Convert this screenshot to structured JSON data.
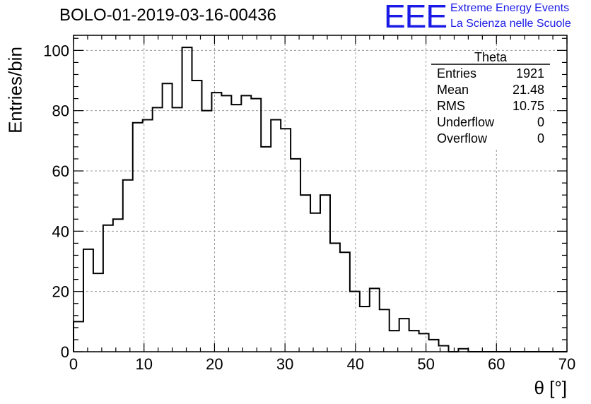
{
  "header": {
    "title": "BOLO-01-2019-03-16-00436",
    "logo_text": "EEE",
    "logo_line1": "Extreme Energy Events",
    "logo_line2": "La Scienza nelle Scuole"
  },
  "stats": {
    "name": "Theta",
    "rows": [
      {
        "label": "Entries",
        "value": "1921"
      },
      {
        "label": "Mean",
        "value": "21.48"
      },
      {
        "label": "RMS",
        "value": "10.75"
      },
      {
        "label": "Underflow",
        "value": "0"
      },
      {
        "label": "Overflow",
        "value": "0"
      }
    ]
  },
  "chart_data": {
    "type": "bar",
    "title": "BOLO-01-2019-03-16-00436",
    "xlabel": "θ [°]",
    "ylabel": "Entries/bin",
    "xlim": [
      0,
      70
    ],
    "ylim": [
      0,
      105
    ],
    "bin_width": 1.4,
    "x_ticks": [
      0,
      10,
      20,
      30,
      40,
      50,
      60,
      70
    ],
    "y_ticks": [
      0,
      20,
      40,
      60,
      80,
      100
    ],
    "grid": true,
    "values": [
      10,
      34,
      26,
      42,
      44,
      57,
      76,
      77,
      81,
      89,
      81,
      101,
      90,
      80,
      86,
      85,
      82,
      85,
      84,
      68,
      77,
      74,
      64,
      52,
      46,
      52,
      36,
      33,
      20,
      15,
      21,
      14,
      7,
      11,
      7,
      6,
      4,
      2,
      0,
      1,
      0,
      0,
      0,
      0,
      0,
      0,
      0,
      0,
      0,
      0
    ]
  }
}
